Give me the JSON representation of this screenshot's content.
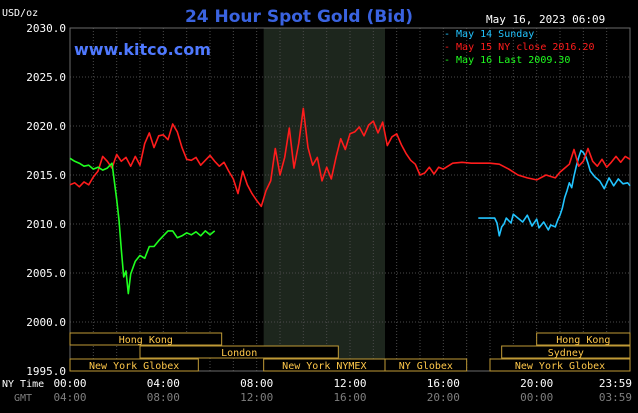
{
  "title": "24 Hour Spot Gold (Bid)",
  "watermark": "www.kitco.com",
  "timestamp": "May 16, 2023 06:09",
  "y_unit": "USD/oz",
  "x_row_label_ny": "NY Time",
  "x_row_label_gmt": "GMT",
  "colors": {
    "background": "#000000",
    "grid": "#4a4a4a",
    "shade": "#1d261d",
    "title": "#3a63e0",
    "watermark": "#4f79ff",
    "axis_text": "#ffffff",
    "gmt_text": "#7f7f7f",
    "session_bar": "#000000",
    "session_text": "#ffc84a",
    "session_border": "#bf9a36"
  },
  "sessions": [
    {
      "name": "Hong Kong",
      "row": 0,
      "start": -0.3,
      "end": 6.5
    },
    {
      "name": "London",
      "row": 1,
      "start": 3.0,
      "end": 11.5
    },
    {
      "name": "New York Globex",
      "row": 2,
      "start": -0.3,
      "end": 5.5
    },
    {
      "name": "New York NYMEX",
      "row": 2,
      "start": 8.3,
      "end": 13.5
    },
    {
      "name": "NY Globex",
      "row": 2,
      "start": 13.5,
      "end": 17.0
    },
    {
      "name": "Hong Kong",
      "row": 0,
      "start": 20.0,
      "end": 24.3
    },
    {
      "name": "Sydney",
      "row": 1,
      "start": 18.5,
      "end": 24.3
    },
    {
      "name": "New York Globex",
      "row": 2,
      "start": 18.0,
      "end": 24.3
    }
  ],
  "chart_data": {
    "type": "line",
    "title": "24 Hour Spot Gold (Bid)",
    "ylabel": "USD/oz",
    "ylim": [
      1995.0,
      2030.0
    ],
    "xlim": [
      0,
      24
    ],
    "y_ticks": [
      "1995.0",
      "2000.0",
      "2005.0",
      "2010.0",
      "2015.0",
      "2020.0",
      "2025.0",
      "2030.0"
    ],
    "x_ticks_ny": [
      "00:00",
      "04:00",
      "08:00",
      "12:00",
      "16:00",
      "20:00",
      "23:59"
    ],
    "x_ticks_gmt": [
      "04:00",
      "08:00",
      "12:00",
      "16:00",
      "20:00",
      "00:00",
      "03:59"
    ],
    "shaded_hours": [
      8.3,
      13.5
    ],
    "grid": true,
    "legend_position": "top-right",
    "series": [
      {
        "name": "May 14 Sunday",
        "color": "#22c4ff",
        "x": [
          17.5,
          17.7,
          17.9,
          18.1,
          18.2,
          18.3,
          18.4,
          18.5,
          18.6,
          18.7,
          18.9,
          19.0,
          19.2,
          19.4,
          19.6,
          19.8,
          20.0,
          20.1,
          20.3,
          20.5,
          20.6,
          20.8,
          20.9,
          21.0,
          21.1,
          21.2,
          21.3,
          21.4,
          21.5,
          21.6,
          21.7,
          21.8,
          21.9,
          22.0,
          22.1,
          22.2,
          22.3,
          22.5,
          22.7,
          22.9,
          23.1,
          23.3,
          23.5,
          23.7,
          23.9,
          24.0
        ],
        "y": [
          2010.6,
          2010.6,
          2010.6,
          2010.6,
          2010.6,
          2010.1,
          2008.8,
          2009.7,
          2010.0,
          2010.6,
          2010.1,
          2011.0,
          2010.6,
          2010.2,
          2010.9,
          2009.8,
          2010.5,
          2009.6,
          2010.2,
          2009.4,
          2009.9,
          2009.7,
          2010.4,
          2010.9,
          2011.6,
          2012.7,
          2013.4,
          2014.2,
          2013.7,
          2014.9,
          2015.9,
          2016.8,
          2017.5,
          2017.3,
          2016.9,
          2016.2,
          2015.4,
          2014.8,
          2014.4,
          2013.6,
          2014.7,
          2013.9,
          2014.6,
          2014.1,
          2014.2,
          2013.9
        ]
      },
      {
        "name": "May 15 NY close 2016.20",
        "color": "#ff1c1c",
        "x": [
          0.0,
          0.2,
          0.4,
          0.6,
          0.8,
          1.0,
          1.2,
          1.4,
          1.6,
          1.8,
          2.0,
          2.2,
          2.4,
          2.6,
          2.8,
          3.0,
          3.2,
          3.4,
          3.6,
          3.8,
          4.0,
          4.2,
          4.4,
          4.6,
          4.8,
          5.0,
          5.2,
          5.4,
          5.6,
          5.8,
          6.0,
          6.2,
          6.4,
          6.6,
          6.8,
          7.0,
          7.2,
          7.4,
          7.6,
          7.8,
          8.0,
          8.2,
          8.4,
          8.6,
          8.8,
          9.0,
          9.2,
          9.4,
          9.6,
          9.8,
          10.0,
          10.2,
          10.4,
          10.6,
          10.8,
          11.0,
          11.2,
          11.4,
          11.6,
          11.8,
          12.0,
          12.2,
          12.4,
          12.6,
          12.8,
          13.0,
          13.2,
          13.4,
          13.6,
          13.8,
          14.0,
          14.2,
          14.4,
          14.6,
          14.8,
          15.0,
          15.2,
          15.4,
          15.6,
          15.8,
          16.0,
          16.4,
          16.8,
          17.2,
          17.6,
          18.0,
          18.4,
          18.8,
          19.2,
          19.6,
          20.0,
          20.4,
          20.8,
          21.0,
          21.2,
          21.4,
          21.6,
          21.8,
          22.0,
          22.2,
          22.4,
          22.6,
          22.8,
          23.0,
          23.2,
          23.4,
          23.6,
          23.8,
          24.0
        ],
        "y": [
          2014.0,
          2014.2,
          2013.8,
          2014.3,
          2014.0,
          2014.8,
          2015.4,
          2016.9,
          2016.4,
          2015.7,
          2017.1,
          2016.4,
          2016.8,
          2015.9,
          2016.9,
          2016.0,
          2018.2,
          2019.3,
          2017.8,
          2019.0,
          2019.1,
          2018.6,
          2020.2,
          2019.4,
          2017.8,
          2016.6,
          2016.5,
          2016.8,
          2016.0,
          2016.5,
          2017.0,
          2016.4,
          2015.9,
          2016.3,
          2015.4,
          2014.6,
          2013.1,
          2015.4,
          2014.0,
          2013.1,
          2012.4,
          2011.8,
          2013.4,
          2014.4,
          2017.7,
          2015.0,
          2016.8,
          2019.8,
          2015.7,
          2018.2,
          2021.8,
          2017.8,
          2016.0,
          2016.8,
          2014.4,
          2015.8,
          2014.6,
          2016.8,
          2018.7,
          2017.6,
          2019.2,
          2019.4,
          2019.9,
          2019.0,
          2020.1,
          2020.5,
          2019.3,
          2020.4,
          2018.0,
          2018.9,
          2019.2,
          2018.1,
          2017.2,
          2016.5,
          2016.1,
          2015.0,
          2015.2,
          2015.8,
          2015.1,
          2015.8,
          2015.6,
          2016.2,
          2016.3,
          2016.2,
          2016.2,
          2016.2,
          2016.1,
          2015.6,
          2015.0,
          2014.7,
          2014.5,
          2015.0,
          2014.7,
          2015.3,
          2015.7,
          2016.1,
          2017.6,
          2015.9,
          2016.4,
          2017.7,
          2016.4,
          2015.9,
          2016.6,
          2015.8,
          2016.3,
          2016.9,
          2016.3,
          2016.9,
          2016.6
        ]
      },
      {
        "name": "May 16 Last 2009.30",
        "color": "#1fff1f",
        "x": [
          0.0,
          0.2,
          0.4,
          0.6,
          0.8,
          1.0,
          1.2,
          1.4,
          1.6,
          1.8,
          2.0,
          2.1,
          2.2,
          2.3,
          2.4,
          2.5,
          2.6,
          2.8,
          3.0,
          3.2,
          3.4,
          3.6,
          3.8,
          4.0,
          4.2,
          4.4,
          4.6,
          4.8,
          5.0,
          5.2,
          5.4,
          5.6,
          5.8,
          6.0,
          6.2
        ],
        "y": [
          2016.7,
          2016.4,
          2016.2,
          2015.9,
          2016.0,
          2015.6,
          2015.8,
          2015.5,
          2015.7,
          2016.2,
          2012.5,
          2010.4,
          2007.4,
          2004.6,
          2005.2,
          2002.9,
          2004.9,
          2006.2,
          2006.8,
          2006.5,
          2007.7,
          2007.7,
          2008.3,
          2008.8,
          2009.3,
          2009.3,
          2008.6,
          2008.8,
          2009.1,
          2008.9,
          2009.2,
          2008.8,
          2009.3,
          2008.9,
          2009.3
        ]
      }
    ]
  }
}
